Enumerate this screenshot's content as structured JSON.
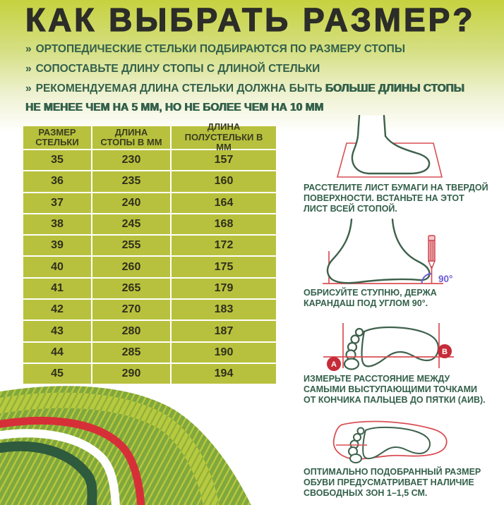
{
  "title": "КАК ВЫБРАТЬ РАЗМЕР?",
  "bullets": [
    {
      "marker": "»",
      "text": "ОРТОПЕДИЧЕСКИЕ СТЕЛЬКИ ПОДБИРАЮТСЯ ПО РАЗМЕРУ СТОПЫ",
      "bold": ""
    },
    {
      "marker": "»",
      "text": "СОПОСТАВЬТЕ ДЛИНУ СТОПЫ С ДЛИНОЙ СТЕЛЬКИ",
      "bold": ""
    },
    {
      "marker": "»",
      "text": "РЕКОМЕНДУЕМАЯ ДЛИНА СТЕЛЬКИ ДОЛЖНА БЫТЬ ",
      "bold": "БОЛЬШЕ ДЛИНЫ СТОПЫ НЕ МЕНЕЕ ЧЕМ НА 5 ММ, НО НЕ БОЛЕЕ ЧЕМ НА 10 ММ"
    }
  ],
  "size_table": {
    "headers": [
      "РАЗМЕР СТЕЛЬКИ",
      "ДЛИНА СТОПЫ В ММ",
      "ДЛИНА ПОЛУСТЕЛЬКИ В ММ"
    ],
    "rows": [
      [
        "35",
        "230",
        "157"
      ],
      [
        "36",
        "235",
        "160"
      ],
      [
        "37",
        "240",
        "164"
      ],
      [
        "38",
        "245",
        "168"
      ],
      [
        "39",
        "255",
        "172"
      ],
      [
        "40",
        "260",
        "175"
      ],
      [
        "41",
        "265",
        "179"
      ],
      [
        "42",
        "270",
        "183"
      ],
      [
        "43",
        "280",
        "187"
      ],
      [
        "44",
        "285",
        "190"
      ],
      [
        "45",
        "290",
        "194"
      ]
    ]
  },
  "steps": [
    {
      "caption": "РАССТЕЛИТЕ ЛИСТ БУМАГИ НА ТВЕРДОЙ ПОВЕРХНОСТИ. ВСТАНЬТЕ НА ЭТОТ ЛИСТ ВСЕЙ СТОПОЙ."
    },
    {
      "caption": "ОБРИСУЙТЕ СТУПНЮ, ДЕРЖА КАРАНДАШ ПОД УГЛОМ 90°.",
      "angle_label": "90°"
    },
    {
      "caption": "ИЗМЕРЬТЕ РАССТОЯНИЕ МЕЖДУ САМЫМИ ВЫСТУПАЮЩИМИ ТОЧКАМИ ОТ КОНЧИКА ПАЛЬЦЕВ ДО ПЯТКИ (АИВ).",
      "point_a": "А",
      "point_b": "В"
    },
    {
      "caption": "ОПТИМАЛЬНО ПОДОБРАННЫЙ РАЗМЕР ОБУВИ ПРЕДУСМАТРИВАЕТ НАЛИЧИЕ СВОБОДНЫХ ЗОН 1–1,5 СМ."
    }
  ],
  "colors": {
    "gradient_top": "#c6d23f",
    "table_olive": "#b8c13d",
    "dark_green_text": "#33604a",
    "foot_outline_green": "#3e614c",
    "illustration_red": "#d94f55",
    "marker_red": "#c62b38",
    "band_red": "#d62f38",
    "band_dark_green": "#2e5a3d",
    "band_light_green": "#b7ca3f",
    "band_medium_green": "#7fa83e",
    "angle_violet": "#6a5dd8",
    "title_color": "#2c2c28"
  }
}
